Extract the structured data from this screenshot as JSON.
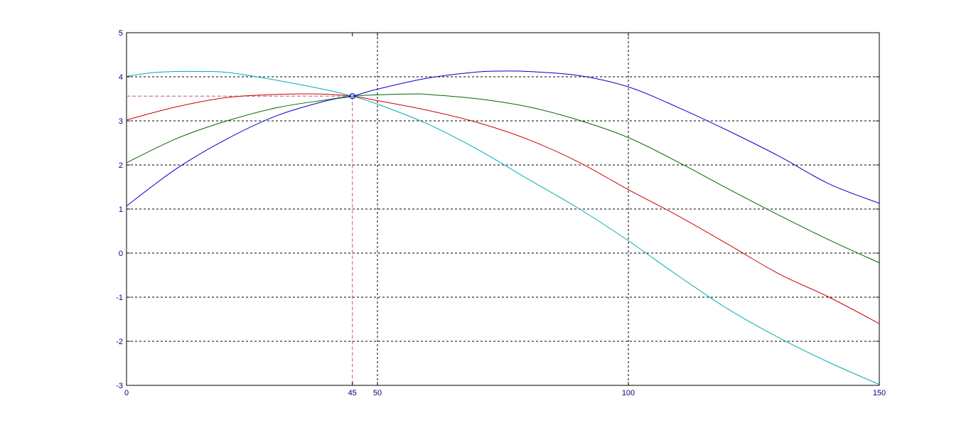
{
  "chart_data": {
    "type": "line",
    "title": "",
    "xlabel": "",
    "ylabel": "",
    "xlim": [
      0,
      150
    ],
    "ylim": [
      -3,
      5
    ],
    "grid": true,
    "xticks": [
      0,
      45,
      50,
      100,
      150
    ],
    "xtick_labels": [
      "0",
      "45",
      "50",
      "100",
      "150"
    ],
    "yticks": [
      -3,
      -2,
      -1,
      0,
      1,
      2,
      3,
      4,
      5
    ],
    "ytick_labels": [
      "-3",
      "-2",
      "-1",
      "0",
      "1",
      "2",
      "3",
      "4",
      "5"
    ],
    "gridlines_x": [
      50,
      100
    ],
    "gridlines_y": [
      -2,
      -1,
      0,
      1,
      2,
      3,
      4
    ],
    "marker": {
      "x": 45,
      "y": 3.56,
      "color": "#0000cc"
    },
    "reference_lines": {
      "x": 45,
      "y": 3.56,
      "color": "#d070a0"
    },
    "series": [
      {
        "color": "#0000cc",
        "x": [
          0,
          10,
          20,
          30,
          40,
          45,
          50,
          60,
          70,
          75,
          80,
          90,
          100,
          110,
          120,
          130,
          140,
          150
        ],
        "y": [
          1.07,
          1.92,
          2.59,
          3.12,
          3.46,
          3.56,
          3.72,
          3.97,
          4.11,
          4.13,
          4.12,
          4.03,
          3.77,
          3.3,
          2.77,
          2.2,
          1.57,
          1.13
        ]
      },
      {
        "color": "#006600",
        "x": [
          0,
          10,
          20,
          30,
          40,
          45,
          50,
          57,
          60,
          70,
          80,
          90,
          100,
          110,
          120,
          130,
          140,
          150
        ],
        "y": [
          2.05,
          2.6,
          3.0,
          3.3,
          3.48,
          3.56,
          3.59,
          3.61,
          3.6,
          3.5,
          3.32,
          3.02,
          2.62,
          2.06,
          1.45,
          0.86,
          0.3,
          -0.22
        ]
      },
      {
        "color": "#cc0000",
        "x": [
          0,
          10,
          20,
          30,
          38,
          45,
          50,
          60,
          70,
          80,
          90,
          100,
          110,
          120,
          130,
          140,
          150
        ],
        "y": [
          3.02,
          3.32,
          3.53,
          3.6,
          3.61,
          3.56,
          3.46,
          3.24,
          2.96,
          2.58,
          2.07,
          1.44,
          0.84,
          0.19,
          -0.47,
          -1.0,
          -1.6
        ]
      },
      {
        "color": "#00b0b0",
        "x": [
          0,
          5,
          10,
          15,
          20,
          30,
          40,
          45,
          50,
          60,
          70,
          80,
          90,
          100,
          110,
          120,
          130,
          140,
          150
        ],
        "y": [
          4.01,
          4.09,
          4.12,
          4.12,
          4.1,
          3.92,
          3.7,
          3.56,
          3.38,
          2.93,
          2.35,
          1.68,
          1.02,
          0.28,
          -0.52,
          -1.28,
          -1.92,
          -2.48,
          -2.98
        ]
      }
    ]
  }
}
